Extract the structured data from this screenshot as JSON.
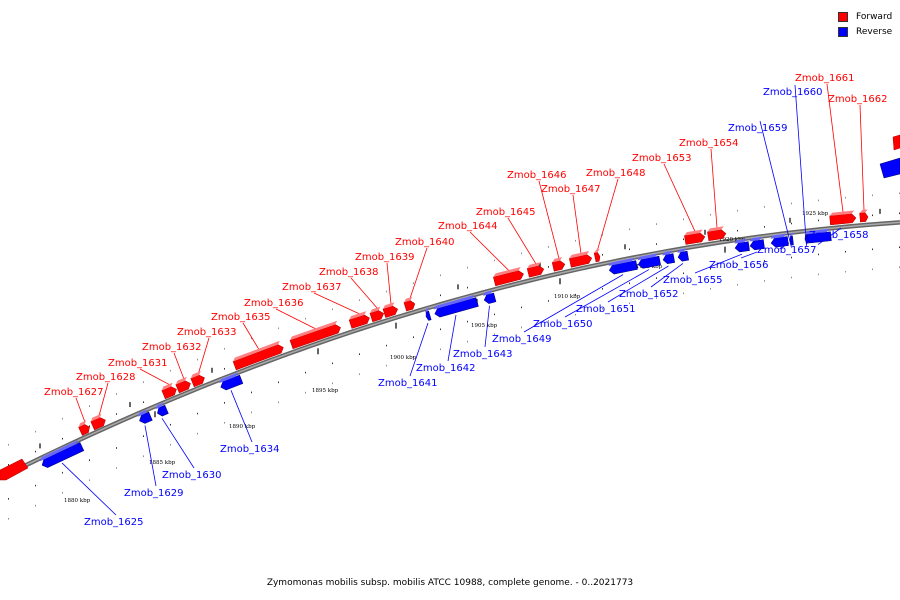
{
  "legend": {
    "forward_label": "Forward",
    "reverse_label": "Reverse",
    "forward_color": "#ff0000",
    "reverse_color": "#0000ff"
  },
  "caption": "Zymomonas mobilis subsp. mobilis ATCC 10988, complete genome. - 0..2021773",
  "ticks": [
    {
      "label": "1880 kbp"
    },
    {
      "label": "1885 kbp"
    },
    {
      "label": "1890 kbp"
    },
    {
      "label": "1895 kbp"
    },
    {
      "label": "1900 kbp"
    },
    {
      "label": "1905 kbp"
    },
    {
      "label": "1910 kbp"
    },
    {
      "label": "1915 kbp"
    },
    {
      "label": "1920 kbp"
    },
    {
      "label": "1925 kbp"
    }
  ],
  "genes": [
    {
      "name": "Zmob_1625",
      "strand": "reverse"
    },
    {
      "name": "Zmob_1627",
      "strand": "forward"
    },
    {
      "name": "Zmob_1628",
      "strand": "forward"
    },
    {
      "name": "Zmob_1629",
      "strand": "reverse"
    },
    {
      "name": "Zmob_1630",
      "strand": "reverse"
    },
    {
      "name": "Zmob_1631",
      "strand": "forward"
    },
    {
      "name": "Zmob_1632",
      "strand": "forward"
    },
    {
      "name": "Zmob_1633",
      "strand": "forward"
    },
    {
      "name": "Zmob_1634",
      "strand": "reverse"
    },
    {
      "name": "Zmob_1635",
      "strand": "forward"
    },
    {
      "name": "Zmob_1636",
      "strand": "forward"
    },
    {
      "name": "Zmob_1637",
      "strand": "forward"
    },
    {
      "name": "Zmob_1638",
      "strand": "forward"
    },
    {
      "name": "Zmob_1639",
      "strand": "forward"
    },
    {
      "name": "Zmob_1640",
      "strand": "forward"
    },
    {
      "name": "Zmob_1641",
      "strand": "reverse"
    },
    {
      "name": "Zmob_1642",
      "strand": "reverse"
    },
    {
      "name": "Zmob_1643",
      "strand": "reverse"
    },
    {
      "name": "Zmob_1644",
      "strand": "forward"
    },
    {
      "name": "Zmob_1645",
      "strand": "forward"
    },
    {
      "name": "Zmob_1646",
      "strand": "forward"
    },
    {
      "name": "Zmob_1647",
      "strand": "forward"
    },
    {
      "name": "Zmob_1648",
      "strand": "forward"
    },
    {
      "name": "Zmob_1649",
      "strand": "reverse"
    },
    {
      "name": "Zmob_1650",
      "strand": "reverse"
    },
    {
      "name": "Zmob_1651",
      "strand": "reverse"
    },
    {
      "name": "Zmob_1652",
      "strand": "reverse"
    },
    {
      "name": "Zmob_1653",
      "strand": "forward"
    },
    {
      "name": "Zmob_1654",
      "strand": "forward"
    },
    {
      "name": "Zmob_1655",
      "strand": "reverse"
    },
    {
      "name": "Zmob_1656",
      "strand": "reverse"
    },
    {
      "name": "Zmob_1657",
      "strand": "reverse"
    },
    {
      "name": "Zmob_1658",
      "strand": "reverse"
    },
    {
      "name": "Zmob_1659",
      "strand": "reverse"
    },
    {
      "name": "Zmob_1660",
      "strand": "reverse"
    },
    {
      "name": "Zmob_1661",
      "strand": "forward"
    },
    {
      "name": "Zmob_1662",
      "strand": "forward"
    }
  ]
}
